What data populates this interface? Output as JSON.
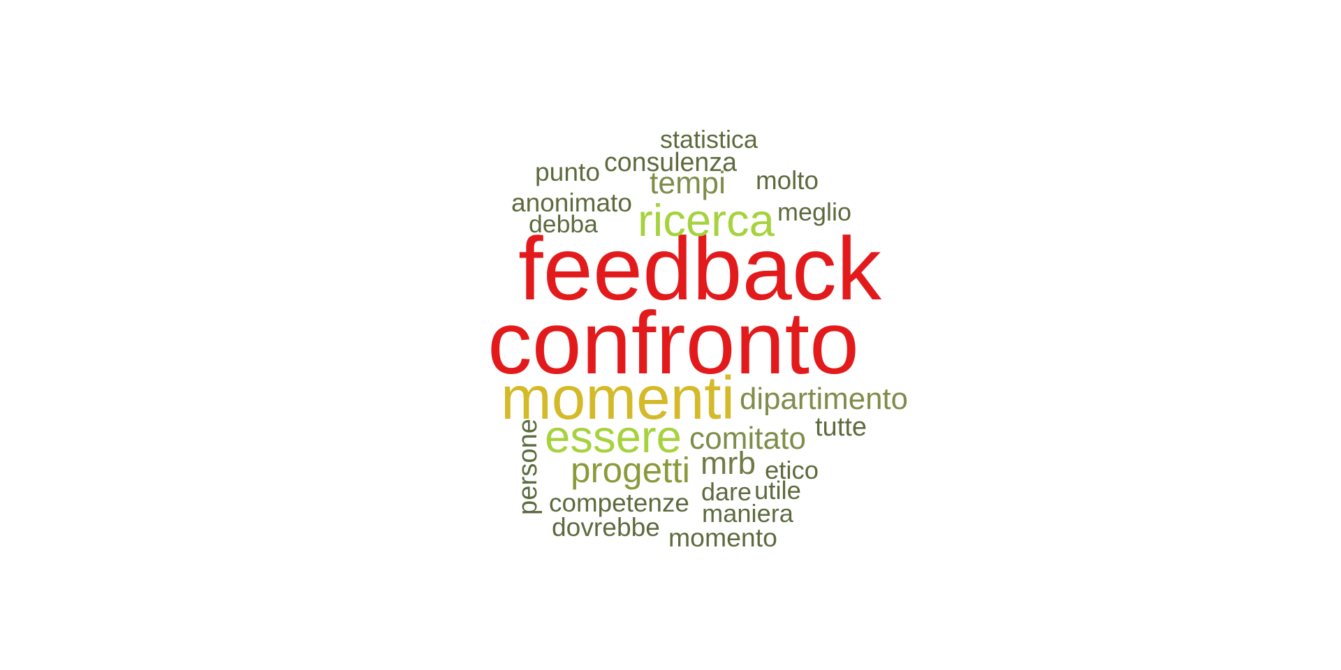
{
  "palette": {
    "red": "#e31a1c",
    "gold": "#d4b928",
    "lime": "#a6d23d",
    "olive": "#8a9a3b",
    "dark_olive": "#5c6a3d"
  },
  "words": [
    {
      "text": "feedback",
      "color": "#e31a1c",
      "vertical": false
    },
    {
      "text": "confronto",
      "color": "#e31a1c",
      "vertical": false
    },
    {
      "text": "momenti",
      "color": "#d4b928",
      "vertical": false
    },
    {
      "text": "ricerca",
      "color": "#a6d23d",
      "vertical": false
    },
    {
      "text": "essere",
      "color": "#a6d23d",
      "vertical": false
    },
    {
      "text": "progetti",
      "color": "#8a9a3b",
      "vertical": false
    },
    {
      "text": "dipartimento",
      "color": "#7f8c4a",
      "vertical": false
    },
    {
      "text": "comitato",
      "color": "#7f8c4a",
      "vertical": false
    },
    {
      "text": "tempi",
      "color": "#7f8c4a",
      "vertical": false
    },
    {
      "text": "mrb",
      "color": "#6f7a45",
      "vertical": false
    },
    {
      "text": "statistica",
      "color": "#5c6a3d",
      "vertical": false
    },
    {
      "text": "consulenza",
      "color": "#5c6a3d",
      "vertical": false
    },
    {
      "text": "punto",
      "color": "#5c6a3d",
      "vertical": false
    },
    {
      "text": "molto",
      "color": "#5c6a3d",
      "vertical": false
    },
    {
      "text": "anonimato",
      "color": "#5c6a3d",
      "vertical": false
    },
    {
      "text": "meglio",
      "color": "#5c6a3d",
      "vertical": false
    },
    {
      "text": "debba",
      "color": "#5c6a3d",
      "vertical": false
    },
    {
      "text": "tutte",
      "color": "#5c6a3d",
      "vertical": false
    },
    {
      "text": "persone",
      "color": "#5c6a3d",
      "vertical": true
    },
    {
      "text": "etico",
      "color": "#5c6a3d",
      "vertical": false
    },
    {
      "text": "dare",
      "color": "#5c6a3d",
      "vertical": false
    },
    {
      "text": "utile",
      "color": "#5c6a3d",
      "vertical": false
    },
    {
      "text": "competenze",
      "color": "#5c6a3d",
      "vertical": false
    },
    {
      "text": "maniera",
      "color": "#5c6a3d",
      "vertical": false
    },
    {
      "text": "dovrebbe",
      "color": "#5c6a3d",
      "vertical": false
    },
    {
      "text": "momento",
      "color": "#5c6a3d",
      "vertical": false
    }
  ]
}
